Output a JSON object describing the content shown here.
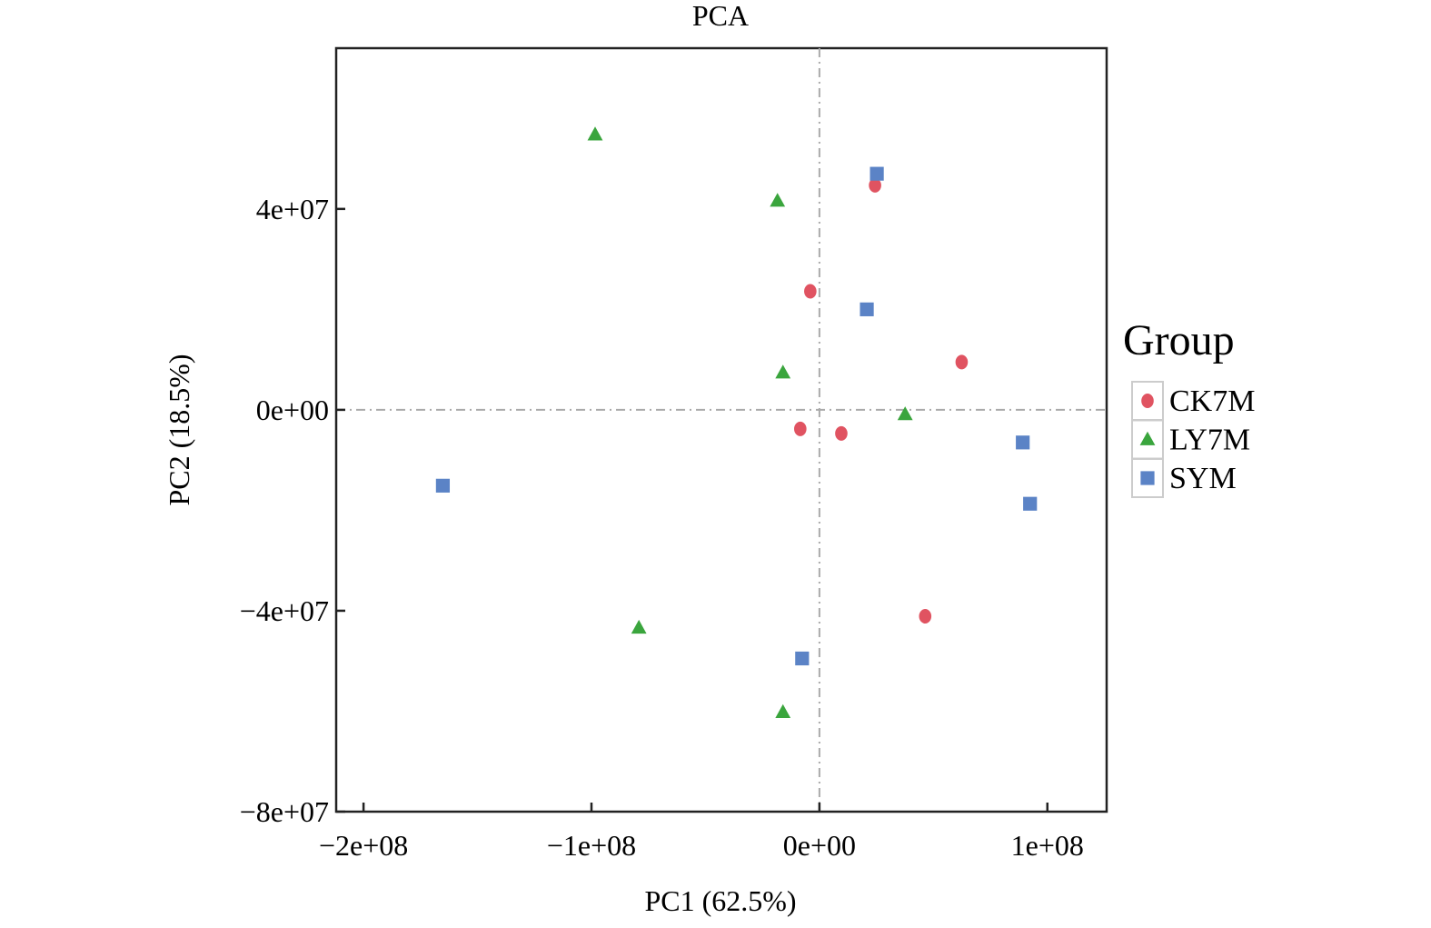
{
  "chart_data": {
    "type": "scatter",
    "title": "PCA",
    "xlabel": "PC1 (62.5%)",
    "ylabel": "PC2 (18.5%)",
    "xlim": [
      -212000000,
      126000000
    ],
    "ylim": [
      -80000000,
      72000000
    ],
    "xticks": [
      {
        "v": -200000000,
        "label": "−2e+08"
      },
      {
        "v": -100000000,
        "label": "−1e+08"
      },
      {
        "v": 0,
        "label": "0e+00"
      },
      {
        "v": 100000000,
        "label": "1e+08"
      }
    ],
    "yticks": [
      {
        "v": -80000000,
        "label": "−8e+07"
      },
      {
        "v": -40000000,
        "label": "−4e+07"
      },
      {
        "v": 0,
        "label": "0e+00"
      },
      {
        "v": 40000000,
        "label": "4e+07"
      }
    ],
    "legend": {
      "title": "Group",
      "position": "right"
    },
    "series": [
      {
        "name": "CK7M",
        "shape": "circle",
        "color": "#e05361",
        "points": [
          [
            24400000,
            44700000
          ],
          [
            -4000000,
            23600000
          ],
          [
            62400000,
            9500000
          ],
          [
            -8400000,
            -3800000
          ],
          [
            9600000,
            -4700000
          ],
          [
            46400000,
            -41100000
          ]
        ]
      },
      {
        "name": "LY7M",
        "shape": "triangle",
        "color": "#3aa53d",
        "points": [
          [
            -98400000,
            54800000
          ],
          [
            -18400000,
            41600000
          ],
          [
            -16000000,
            7400000
          ],
          [
            37600000,
            -900000
          ],
          [
            -79200000,
            -43400000
          ],
          [
            -16000000,
            -60200000
          ]
        ]
      },
      {
        "name": "SYM",
        "shape": "square",
        "color": "#5b83c6",
        "points": [
          [
            25200000,
            47000000
          ],
          [
            20800000,
            20000000
          ],
          [
            89200000,
            -6500000
          ],
          [
            92400000,
            -18700000
          ],
          [
            -165200000,
            -15100000
          ],
          [
            -7600000,
            -49500000
          ]
        ]
      }
    ]
  }
}
